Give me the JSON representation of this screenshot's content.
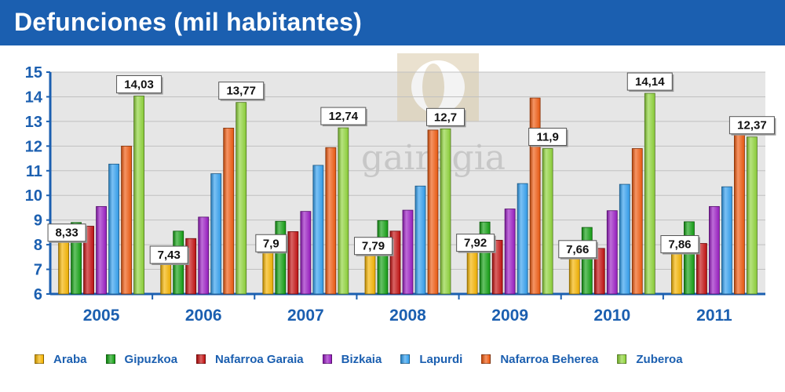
{
  "title": "Defunciones (mil habitantes)",
  "watermark": "gairegia",
  "colors": {
    "title_bg": "#1b5fb0",
    "axis_text": "#1b5fb0",
    "plot_bg": "#e6e6e6",
    "grid": "#c0c0c0"
  },
  "chart_data": {
    "type": "bar",
    "title": "Defunciones (mil habitantes)",
    "categories": [
      "2005",
      "2006",
      "2007",
      "2008",
      "2009",
      "2010",
      "2011"
    ],
    "ylim": [
      6,
      15
    ],
    "yticks": [
      "6",
      "7",
      "8",
      "9",
      "10",
      "11",
      "12",
      "13",
      "14",
      "15"
    ],
    "grid": true,
    "legend_position": "bottom",
    "series": [
      {
        "name": "Araba",
        "color": "#f5b400",
        "values": [
          8.33,
          7.43,
          7.9,
          7.79,
          7.92,
          7.66,
          7.86
        ],
        "labels": [
          "8,33",
          "7,43",
          "7,9",
          "7,79",
          "7,92",
          "7,66",
          "7,86"
        ]
      },
      {
        "name": "Gipuzkoa",
        "color": "#13a113",
        "values": [
          8.9,
          8.55,
          8.95,
          8.98,
          8.92,
          8.7,
          8.93
        ]
      },
      {
        "name": "Nafarroa Garaia",
        "color": "#c41010",
        "values": [
          8.75,
          8.25,
          8.53,
          8.55,
          8.18,
          7.85,
          8.05
        ]
      },
      {
        "name": "Bizkaia",
        "color": "#9b1dc4",
        "values": [
          9.55,
          9.12,
          9.35,
          9.4,
          9.45,
          9.38,
          9.55
        ]
      },
      {
        "name": "Lapurdi",
        "color": "#33a0f0",
        "values": [
          11.27,
          10.88,
          11.22,
          10.38,
          10.48,
          10.45,
          10.35
        ]
      },
      {
        "name": "Nafarroa Beherea",
        "color": "#f05a10",
        "values": [
          12.0,
          12.73,
          11.94,
          12.65,
          13.95,
          11.9,
          12.47
        ]
      },
      {
        "name": "Zuberoa",
        "color": "#8fd43a",
        "values": [
          14.03,
          13.77,
          12.74,
          12.7,
          11.9,
          14.14,
          12.37
        ],
        "labels": [
          "14,03",
          "13,77",
          "12,74",
          "12,7",
          "11,9",
          "14,14",
          "12,37"
        ]
      }
    ]
  }
}
